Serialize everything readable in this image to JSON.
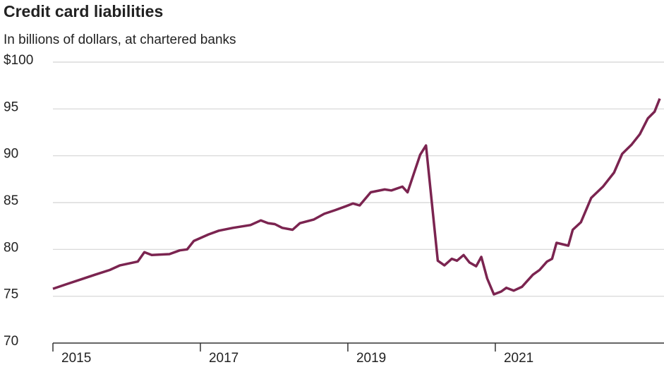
{
  "chart_data": {
    "type": "line",
    "title": "Credit card liabilities",
    "subtitle": "In billions of dollars, at chartered banks",
    "x": [
      2015.0,
      2015.19,
      2015.38,
      2015.57,
      2015.77,
      2015.91,
      2016.15,
      2016.24,
      2016.34,
      2016.58,
      2016.72,
      2016.82,
      2016.91,
      2017.11,
      2017.25,
      2017.44,
      2017.68,
      2017.82,
      2017.92,
      2018.01,
      2018.11,
      2018.25,
      2018.35,
      2018.54,
      2018.68,
      2018.83,
      2018.97,
      2019.07,
      2019.16,
      2019.31,
      2019.5,
      2019.59,
      2019.74,
      2019.81,
      2019.98,
      2020.06,
      2020.22,
      2020.31,
      2020.41,
      2020.48,
      2020.57,
      2020.65,
      2020.74,
      2020.81,
      2020.89,
      2020.98,
      2021.08,
      2021.15,
      2021.25,
      2021.36,
      2021.51,
      2021.6,
      2021.7,
      2021.77,
      2021.83,
      2021.99,
      2022.05,
      2022.16,
      2022.3,
      2022.46,
      2022.61,
      2022.72,
      2022.85,
      2022.96,
      2023.07,
      2023.16,
      2023.23
    ],
    "series": [
      {
        "name": "Credit card liabilities",
        "color": "#7b2450",
        "values": [
          75.8,
          76.3,
          76.8,
          77.3,
          77.8,
          78.3,
          78.7,
          79.7,
          79.4,
          79.5,
          79.9,
          80.0,
          80.9,
          81.6,
          82.0,
          82.3,
          82.6,
          83.1,
          82.8,
          82.7,
          82.3,
          82.1,
          82.8,
          83.2,
          83.8,
          84.2,
          84.6,
          84.9,
          84.7,
          86.1,
          86.4,
          86.3,
          86.7,
          86.1,
          90.1,
          91.1,
          78.8,
          78.3,
          79.0,
          78.8,
          79.4,
          78.6,
          78.2,
          79.2,
          76.9,
          75.2,
          75.5,
          75.9,
          75.6,
          76.0,
          77.3,
          77.8,
          78.7,
          79.0,
          80.7,
          80.4,
          82.1,
          82.9,
          85.5,
          86.7,
          88.2,
          90.2,
          91.2,
          92.3,
          94.0,
          94.7,
          96.1
        ]
      }
    ],
    "xlim": [
      2015,
      2023.24
    ],
    "xticks": [
      2015,
      2017,
      2019,
      2021
    ],
    "ylim": [
      70,
      100
    ],
    "yticks": [
      70,
      75,
      80,
      85,
      90,
      95,
      {
        "value": 100,
        "label": "$100"
      }
    ],
    "grid": true
  }
}
